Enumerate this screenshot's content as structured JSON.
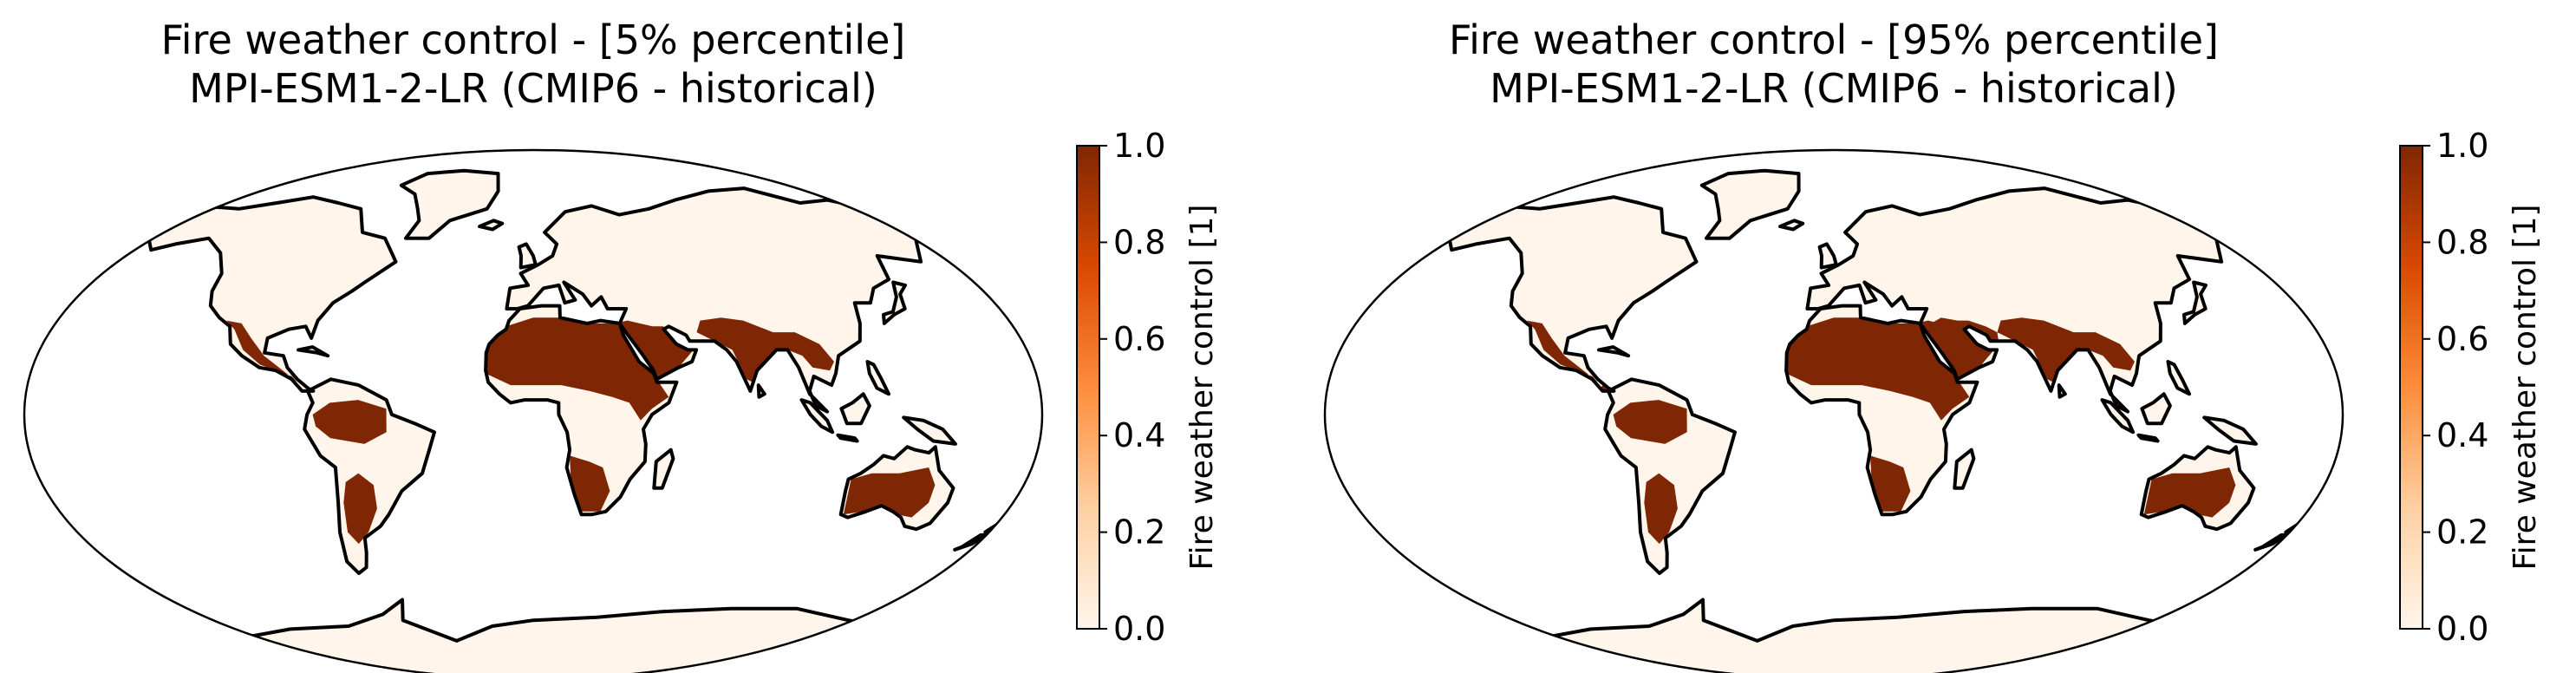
{
  "panels": [
    {
      "title_line1": "Fire weather control - [5% percentile]",
      "title_line2": "MPI-ESM1-2-LR (CMIP6 - historical)",
      "variant": "p5"
    },
    {
      "title_line1": "Fire weather control - [95% percentile]",
      "title_line2": "MPI-ESM1-2-LR (CMIP6 - historical)",
      "variant": "p95"
    }
  ],
  "colorbar": {
    "label": "Fire weather control [1]",
    "ticks": [
      "0.0",
      "0.2",
      "0.4",
      "0.6",
      "0.8",
      "1.0"
    ],
    "colormap": "Oranges",
    "stops": [
      "#fff5eb",
      "#fdd0a2",
      "#fd8d3c",
      "#d94801",
      "#7f2704"
    ]
  },
  "colors": {
    "land_low": "#fff5eb",
    "land_high": "#7f2704",
    "ocean": "#ffffff",
    "outline": "#000000"
  }
}
